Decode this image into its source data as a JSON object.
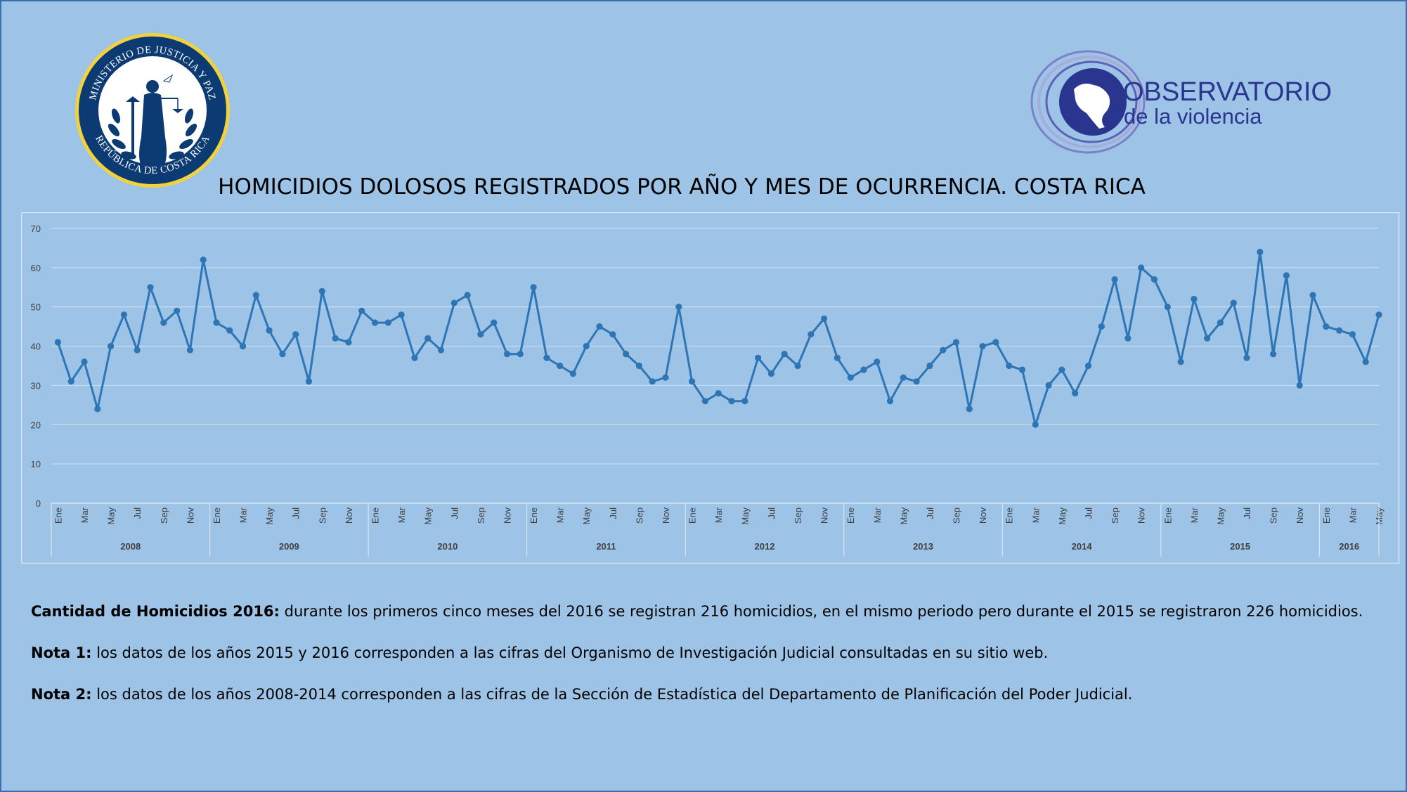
{
  "seal": {
    "top_text": "MINISTERIO DE JUSTICIA Y PAZ",
    "bottom_text": "REPÚBLICA DE COSTA RICA"
  },
  "observatorio": {
    "line1": "OBSERVATORIO",
    "line2": "de la violencia"
  },
  "colors": {
    "background": "#9dc3e6",
    "series": "#2e75b6",
    "gridline": "#c9ddf0",
    "axis_text": "#404040"
  },
  "chart_data": {
    "type": "line",
    "title": "HOMICIDIOS DOLOSOS REGISTRADOS POR AÑO Y MES DE OCURRENCIA. COSTA RICA",
    "xlabel": "",
    "ylabel": "",
    "ylim": [
      0,
      70
    ],
    "yticks": [
      0,
      10,
      20,
      30,
      40,
      50,
      60,
      70
    ],
    "grid": true,
    "legend": "none",
    "month_labels": [
      "Ene",
      "Mar",
      "May",
      "Jul",
      "Sep",
      "Nov"
    ],
    "years": [
      {
        "year": "2008",
        "months": 12
      },
      {
        "year": "2009",
        "months": 12
      },
      {
        "year": "2010",
        "months": 12
      },
      {
        "year": "2011",
        "months": 12
      },
      {
        "year": "2012",
        "months": 12
      },
      {
        "year": "2013",
        "months": 12
      },
      {
        "year": "2014",
        "months": 12
      },
      {
        "year": "2015",
        "months": 12
      },
      {
        "year": "2016",
        "months": 5
      }
    ],
    "series": [
      {
        "name": "Homicidios dolosos",
        "values": [
          41,
          31,
          36,
          24,
          40,
          48,
          39,
          55,
          46,
          49,
          39,
          62,
          46,
          44,
          40,
          53,
          44,
          38,
          43,
          31,
          54,
          42,
          41,
          49,
          46,
          46,
          48,
          37,
          42,
          39,
          51,
          53,
          43,
          46,
          38,
          38,
          55,
          37,
          35,
          33,
          40,
          45,
          43,
          38,
          35,
          31,
          32,
          50,
          31,
          26,
          28,
          26,
          26,
          37,
          33,
          38,
          35,
          43,
          47,
          37,
          32,
          34,
          36,
          26,
          32,
          31,
          35,
          39,
          41,
          24,
          40,
          41,
          35,
          34,
          20,
          30,
          34,
          28,
          35,
          45,
          57,
          42,
          60,
          57,
          50,
          36,
          52,
          42,
          46,
          51,
          37,
          64,
          38,
          58,
          30,
          53,
          45,
          44,
          43,
          36,
          48
        ]
      }
    ]
  },
  "notes": [
    {
      "label": "Cantidad de Homicidios 2016:",
      "text": " durante los primeros cinco meses del 2016 se registran 216 homicidios, en el mismo periodo pero durante el 2015 se registraron 226 homicidios."
    },
    {
      "label": "Nota 1:",
      "text": " los datos de los años 2015 y 2016 corresponden a las cifras del Organismo de Investigación Judicial consultadas en su sitio web."
    },
    {
      "label": "Nota 2:",
      "text": " los datos de los años 2008-2014 corresponden a las cifras de la Sección de Estadística del Departamento de Planificación del Poder Judicial."
    }
  ]
}
